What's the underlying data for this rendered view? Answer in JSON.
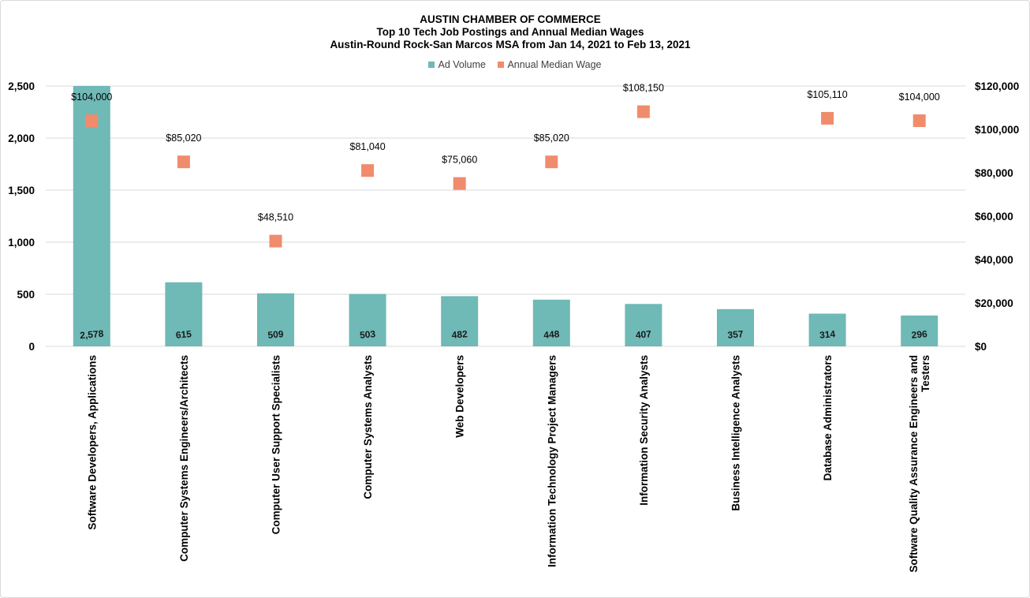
{
  "chart_data": {
    "type": "bar",
    "title": "AUSTIN CHAMBER OF COMMERCE",
    "subtitle_lines": [
      "Top 10 Tech Job Postings and Annual  Median Wages",
      "Austin-Round Rock-San Marcos MSA from Jan 14, 2021 to Feb 13, 2021"
    ],
    "categories": [
      "Software Developers, Applications",
      "Computer Systems Engineers/Architects",
      "Computer User Support Specialists",
      "Computer Systems Analysts",
      "Web Developers",
      "Information Technology Project Managers",
      "Information Security Analysts",
      "Business Intelligence Analysts",
      "Database Administrators",
      "Software Quality Assurance Engineers and Testers"
    ],
    "series": [
      {
        "name": "Ad Volume",
        "type": "bar",
        "axis": "left",
        "color": "#6fb9b6",
        "values": [
          2578,
          615,
          509,
          503,
          482,
          448,
          407,
          357,
          314,
          296
        ],
        "labels": [
          "2,578",
          "615",
          "509",
          "503",
          "482",
          "448",
          "407",
          "357",
          "314",
          "296"
        ]
      },
      {
        "name": "Annual Median Wage",
        "type": "scatter",
        "marker": "square",
        "axis": "right",
        "color": "#f08c6c",
        "values": [
          104000,
          85020,
          48510,
          81040,
          75060,
          85020,
          108150,
          null,
          105110,
          104000
        ],
        "labels": [
          "$104,000",
          "$85,020",
          "$48,510",
          "$81,040",
          "$75,060",
          "$85,020",
          "$108,150",
          "",
          "$105,110",
          "$104,000"
        ]
      }
    ],
    "y_left": {
      "ylim": [
        0,
        2500
      ],
      "ticks": [
        "0",
        "500",
        "1,000",
        "1,500",
        "2,000",
        "2,500"
      ]
    },
    "y_right": {
      "ylim": [
        0,
        120000
      ],
      "ticks": [
        "$0",
        "$20,000",
        "$40,000",
        "$60,000",
        "$80,000",
        "$100,000",
        "$120,000"
      ]
    },
    "grid": true,
    "legend_position": "top-center"
  }
}
